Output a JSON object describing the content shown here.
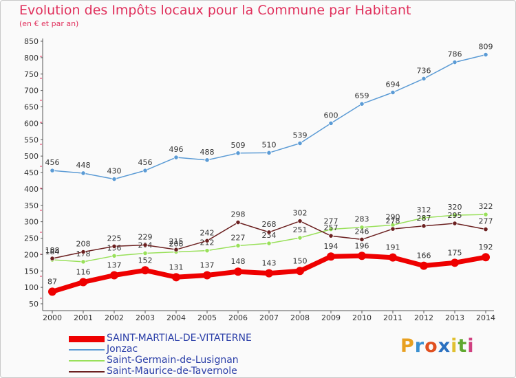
{
  "chart_data": {
    "type": "line",
    "title": "Evolution des Impôts locaux pour la Commune par Habitant",
    "subtitle": "(en € et par an)",
    "x": [
      "2000",
      "2001",
      "2002",
      "2003",
      "2004",
      "2005",
      "2006",
      "2007",
      "2008",
      "2009",
      "2010",
      "2011",
      "2012",
      "2013",
      "2014"
    ],
    "ylim": [
      50,
      850
    ],
    "yticks": [
      50,
      100,
      150,
      200,
      250,
      300,
      350,
      400,
      450,
      500,
      550,
      600,
      650,
      700,
      750,
      800,
      850
    ],
    "grid": false,
    "series": [
      {
        "name": "SAINT-MARTIAL-DE-VITATERNE",
        "color": "#ee0000",
        "values": [
          87,
          116,
          137,
          152,
          131,
          137,
          148,
          143,
          150,
          194,
          196,
          191,
          166,
          175,
          192
        ]
      },
      {
        "name": "Jonzac",
        "color": "#5b9bd5",
        "values": [
          456,
          448,
          430,
          456,
          496,
          488,
          509,
          510,
          539,
          600,
          659,
          694,
          736,
          786,
          809
        ]
      },
      {
        "name": "Saint-Germain-de-Lusignan",
        "color": "#99e05a",
        "values": [
          184,
          178,
          196,
          204,
          208,
          212,
          227,
          234,
          251,
          277,
          283,
          290,
          312,
          320,
          322
        ]
      },
      {
        "name": "Saint-Maurice-de-Tavernole",
        "color": "#6b2020",
        "values": [
          188,
          208,
          225,
          229,
          215,
          242,
          298,
          268,
          302,
          257,
          246,
          278,
          287,
          295,
          277
        ]
      }
    ]
  },
  "legend": {
    "items": [
      {
        "label": "SAINT-MARTIAL-DE-VITATERNE",
        "color": "#ee0000"
      },
      {
        "label": "Jonzac",
        "color": "#5b9bd5"
      },
      {
        "label": "Saint-Germain-de-Lusignan",
        "color": "#99e05a"
      },
      {
        "label": "Saint-Maurice-de-Tavernole",
        "color": "#6b2020"
      }
    ]
  },
  "logo": {
    "text": "Proxiti"
  },
  "colors": {
    "title": "#e0305c",
    "axis": "#555555",
    "legend_text": "#2b3fa8"
  }
}
